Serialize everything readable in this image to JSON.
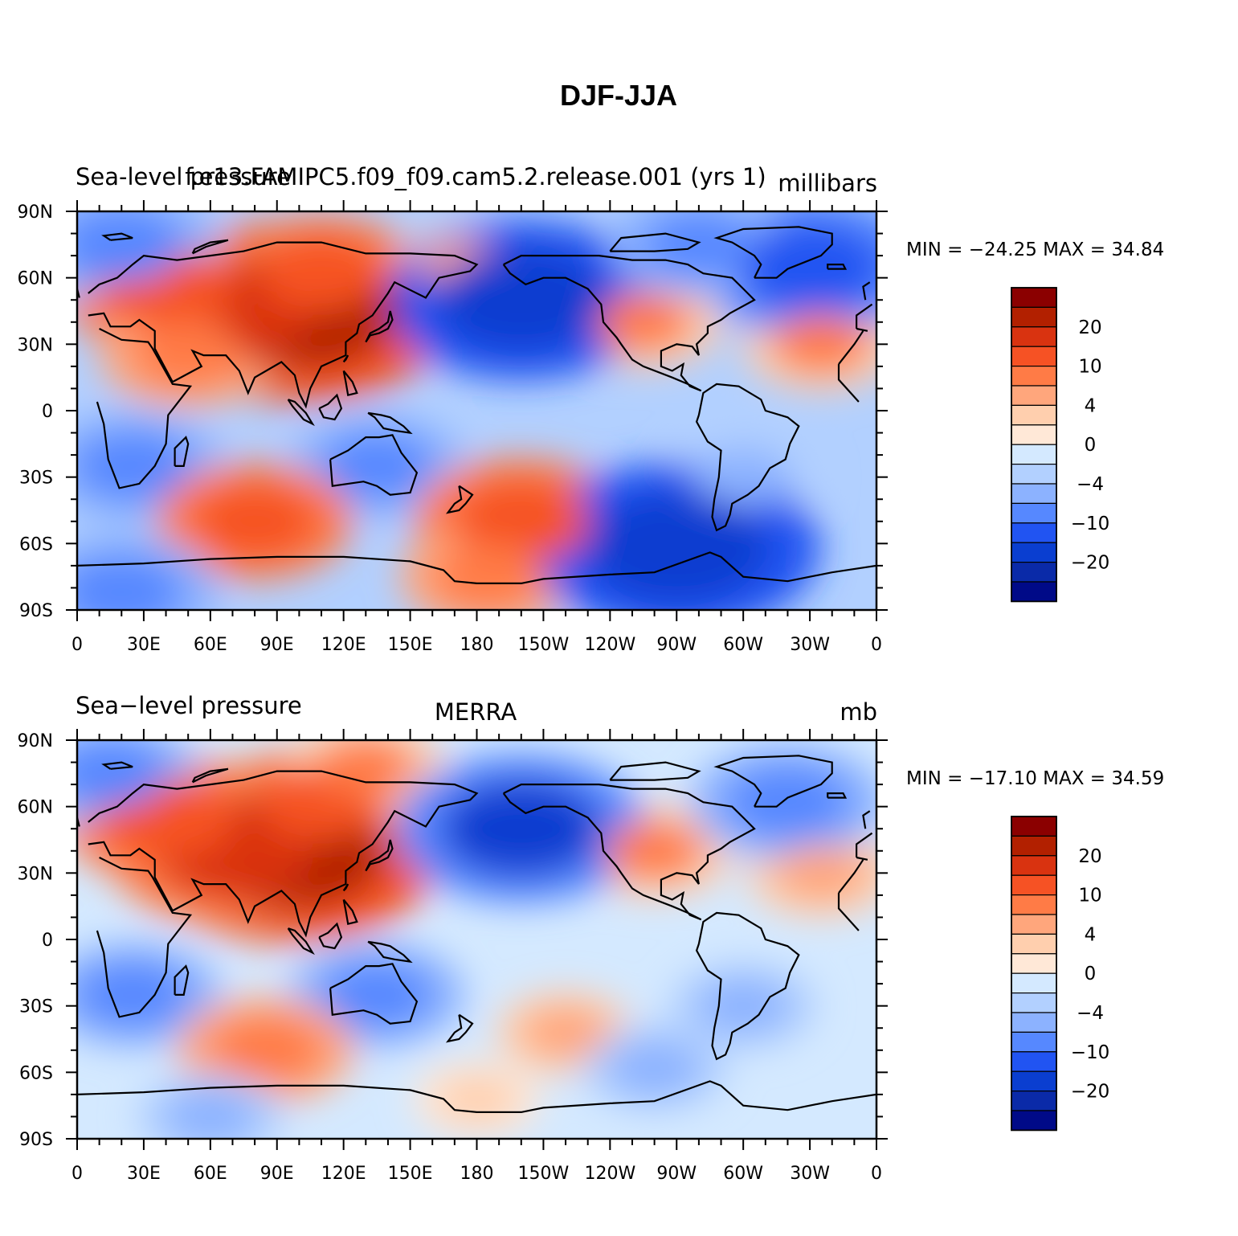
{
  "figure": {
    "title": "DJF-JJA"
  },
  "panels": [
    {
      "id": "model",
      "left_title": "Sea-level pressure",
      "center_title": "f.e13.FAMIPC5.f09_f09.cam5.2.release.001 (yrs 1)",
      "right_title": "millibars",
      "stats": "MIN = −24.25  MAX =   34.84"
    },
    {
      "id": "merra",
      "left_title": "Sea−level pressure",
      "center_title": "MERRA",
      "right_title": "mb",
      "stats": "MIN = −17.10  MAX =   34.59"
    }
  ],
  "axes": {
    "lat_labels": [
      "90N",
      "60N",
      "30N",
      "0",
      "30S",
      "60S",
      "90S"
    ],
    "lat_values": [
      90,
      60,
      30,
      0,
      -30,
      -60,
      -90
    ],
    "lon_labels": [
      "0",
      "30E",
      "60E",
      "90E",
      "120E",
      "150E",
      "180",
      "150W",
      "120W",
      "90W",
      "60W",
      "30W",
      "0"
    ],
    "lon_values": [
      0,
      30,
      60,
      90,
      120,
      150,
      180,
      210,
      240,
      270,
      300,
      330,
      360
    ]
  },
  "colorbar": {
    "colors": [
      "#8b0000",
      "#b22000",
      "#d93310",
      "#f65224",
      "#ff7b46",
      "#ffa67c",
      "#ffcfae",
      "#ffe8d7",
      "#d4e9ff",
      "#b2d0ff",
      "#8cb2ff",
      "#5688ff",
      "#2154f2",
      "#0a3ed0",
      "#0a2aa8",
      "#000a88"
    ],
    "tick_labels": [
      "20",
      "10",
      "4",
      "0",
      "−4",
      "−10",
      "−20"
    ]
  },
  "chart_data": {
    "type": "heatmap",
    "title": "DJF-JJA",
    "variable": "Sea-level pressure",
    "units": [
      "millibars",
      "mb"
    ],
    "xlim": [
      0,
      360
    ],
    "ylim": [
      -90,
      90
    ],
    "panels": [
      {
        "name": "f.e13.FAMIPC5.f09_f09.cam5.2.release.001 (yrs 1)",
        "min": -24.25,
        "max": 34.84,
        "features": [
          {
            "lon": 100,
            "lat": 45,
            "value": 22
          },
          {
            "lon": 70,
            "lat": 45,
            "value": 16
          },
          {
            "lon": 40,
            "lat": 55,
            "value": 12
          },
          {
            "lon": 110,
            "lat": 62,
            "value": 10
          },
          {
            "lon": 175,
            "lat": 65,
            "value": 4
          },
          {
            "lon": 50,
            "lat": 25,
            "value": 8
          },
          {
            "lon": 335,
            "lat": 30,
            "value": 6
          },
          {
            "lon": 255,
            "lat": 40,
            "value": 6
          },
          {
            "lon": 200,
            "lat": 50,
            "value": -18
          },
          {
            "lon": 330,
            "lat": 65,
            "value": -14
          },
          {
            "lon": 20,
            "lat": 75,
            "value": -10
          },
          {
            "lon": 280,
            "lat": 75,
            "value": -8
          },
          {
            "lon": 135,
            "lat": -25,
            "value": -8
          },
          {
            "lon": 25,
            "lat": -25,
            "value": -9
          },
          {
            "lon": 300,
            "lat": -30,
            "value": -6
          },
          {
            "lon": 80,
            "lat": -50,
            "value": 10
          },
          {
            "lon": 200,
            "lat": -50,
            "value": 12
          },
          {
            "lon": 185,
            "lat": -75,
            "value": 8
          },
          {
            "lon": 270,
            "lat": -62,
            "value": -20
          },
          {
            "lon": 20,
            "lat": -82,
            "value": -10
          }
        ]
      },
      {
        "name": "MERRA",
        "min": -17.1,
        "max": 34.59,
        "features": [
          {
            "lon": 95,
            "lat": 40,
            "value": 22
          },
          {
            "lon": 70,
            "lat": 40,
            "value": 16
          },
          {
            "lon": 40,
            "lat": 55,
            "value": 12
          },
          {
            "lon": 110,
            "lat": 62,
            "value": 10
          },
          {
            "lon": 130,
            "lat": 78,
            "value": 6
          },
          {
            "lon": 335,
            "lat": 30,
            "value": 5
          },
          {
            "lon": 260,
            "lat": 40,
            "value": 6
          },
          {
            "lon": 200,
            "lat": 50,
            "value": -16
          },
          {
            "lon": 320,
            "lat": 62,
            "value": -10
          },
          {
            "lon": 15,
            "lat": 75,
            "value": -8
          },
          {
            "lon": 135,
            "lat": -25,
            "value": -8
          },
          {
            "lon": 25,
            "lat": -25,
            "value": -8
          },
          {
            "lon": 300,
            "lat": -30,
            "value": -5
          },
          {
            "lon": 85,
            "lat": -50,
            "value": 8
          },
          {
            "lon": 220,
            "lat": -42,
            "value": 4
          },
          {
            "lon": 260,
            "lat": -58,
            "value": -5
          },
          {
            "lon": 180,
            "lat": -72,
            "value": 3
          },
          {
            "lon": 60,
            "lat": -80,
            "value": -5
          }
        ]
      }
    ]
  }
}
